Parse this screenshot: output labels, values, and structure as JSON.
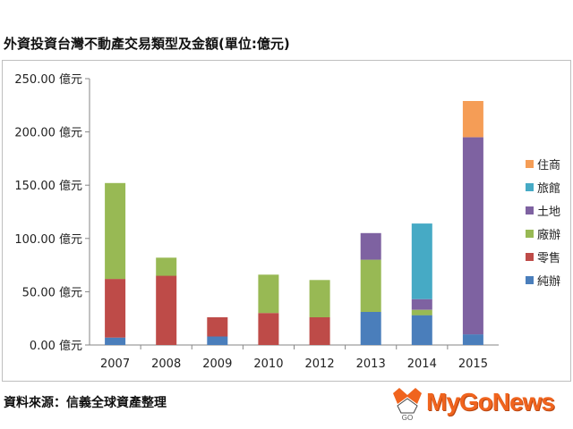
{
  "title": "外資投資台灣不動產交易類型及金額(單位:億元)",
  "source": "資料來源：信義全球資產整理",
  "logo": {
    "text": "MyGoNews",
    "mark_text": "GO"
  },
  "colors": {
    "純辦": "#4a7ebb",
    "零售": "#be4b48",
    "廠辦": "#98b954",
    "土地": "#7e62a1",
    "旅館": "#46aac5",
    "住商": "#f59d56"
  },
  "chart_data": {
    "type": "bar",
    "stacked": true,
    "title": "外資投資台灣不動產交易類型及金額(單位:億元)",
    "categories": [
      "2007",
      "2008",
      "2009",
      "2010",
      "2012",
      "2013",
      "2014",
      "2015"
    ],
    "series": [
      {
        "name": "純辦",
        "values": [
          7,
          0,
          8,
          0,
          0,
          31,
          28,
          10
        ]
      },
      {
        "name": "零售",
        "values": [
          55,
          65,
          18,
          30,
          26,
          0,
          0,
          0
        ]
      },
      {
        "name": "廠辦",
        "values": [
          90,
          17,
          0,
          36,
          35,
          49,
          5,
          0
        ]
      },
      {
        "name": "土地",
        "values": [
          0,
          0,
          0,
          0,
          0,
          25,
          10,
          185
        ]
      },
      {
        "name": "旅館",
        "values": [
          0,
          0,
          0,
          0,
          0,
          0,
          71,
          0
        ]
      },
      {
        "name": "住商",
        "values": [
          0,
          0,
          0,
          0,
          0,
          0,
          0,
          34
        ]
      }
    ],
    "ylim": [
      0,
      250
    ],
    "yticks": [
      "0.00 億元",
      "50.00 億元",
      "100.00 億元",
      "150.00 億元",
      "200.00 億元",
      "250.00 億元"
    ],
    "legend": [
      "住商",
      "旅館",
      "土地",
      "廠辦",
      "零售",
      "純辦"
    ],
    "legend_position": "right",
    "grid": false
  }
}
